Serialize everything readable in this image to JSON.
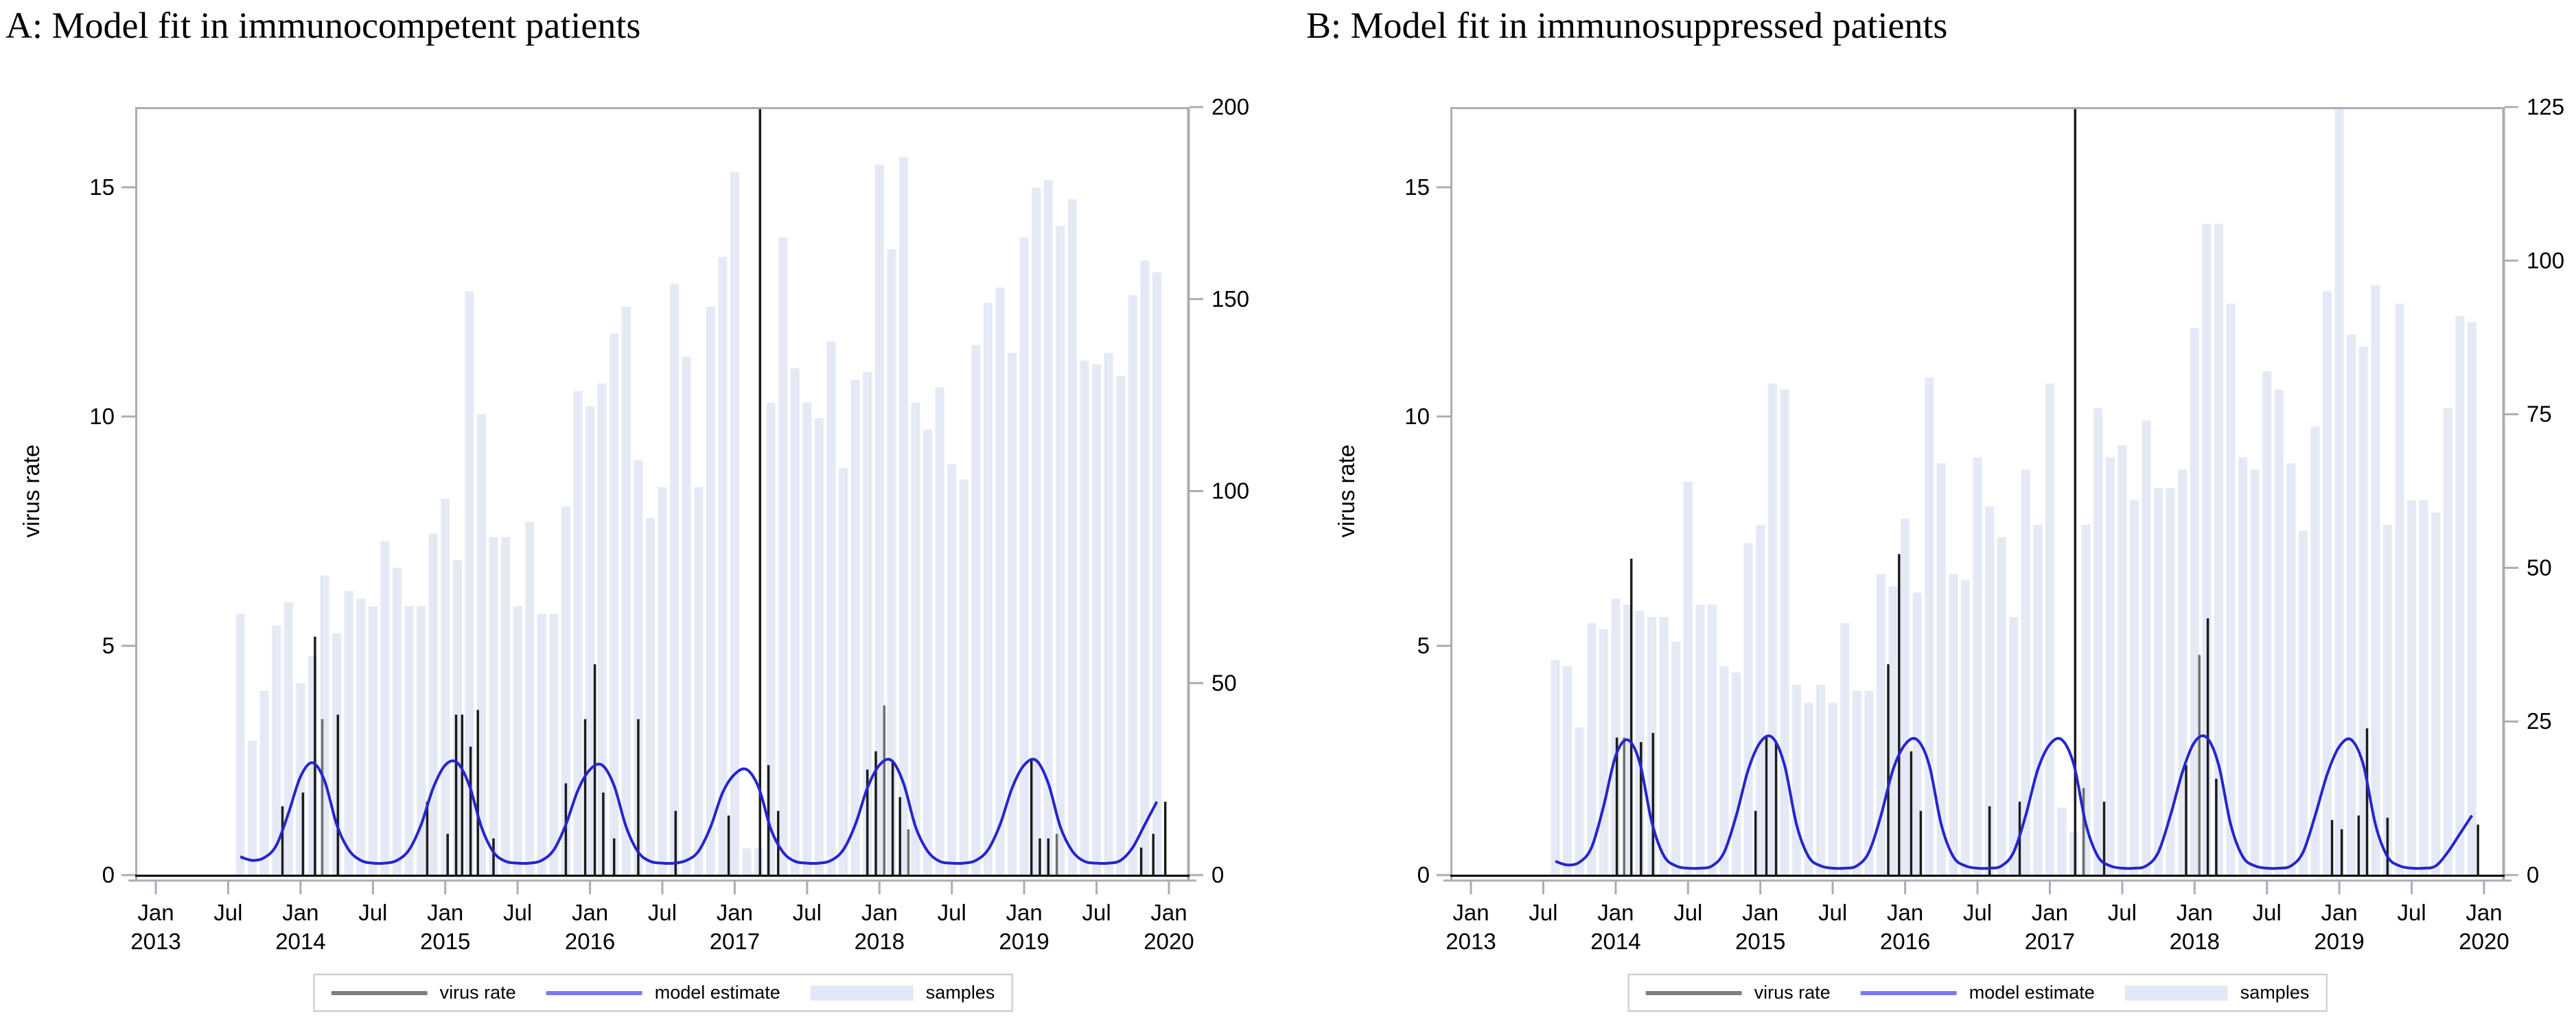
{
  "titles": {
    "panel_a": "A: Model fit in immunocompetent patients",
    "panel_b": "B: Model fit in immunosuppressed patients"
  },
  "y_axis_label": "virus rate",
  "legend": {
    "items": [
      {
        "swatch": "line",
        "color": "#7f7f7f",
        "label": "virus rate"
      },
      {
        "swatch": "line",
        "color": "#7a7ae8",
        "label": "model estimate"
      },
      {
        "swatch": "box",
        "color": "#e2e8f5",
        "label": "samples"
      }
    ]
  },
  "colors": {
    "bar": "#e4e9f5",
    "curve": "#2525cd",
    "spike_dark": "#1c1c1c",
    "spike_gray": "#6f6f6f",
    "axis_gray": "#a9aeb4",
    "axis_black": "#000000",
    "text": "#000000",
    "legend_border": "#c9cdd1"
  },
  "chart_data": [
    {
      "panel": "A",
      "type": "bar",
      "title": "A: Model fit in immunocompetent patients",
      "xlabel": "",
      "ylabel_left": "virus rate",
      "ylabel_right": "",
      "x_range": [
        "Jan 2013",
        "Jan 2020"
      ],
      "x_tick_labels": [
        [
          "Jan",
          "2013"
        ],
        [
          "Jul"
        ],
        [
          "Jan",
          "2014"
        ],
        [
          "Jul"
        ],
        [
          "Jan",
          "2015"
        ],
        [
          "Jul"
        ],
        [
          "Jan",
          "2016"
        ],
        [
          "Jul"
        ],
        [
          "Jan",
          "2017"
        ],
        [
          "Jul"
        ],
        [
          "Jan",
          "2018"
        ],
        [
          "Jul"
        ],
        [
          "Jan",
          "2019"
        ],
        [
          "Jul"
        ],
        [
          "Jan",
          "2020"
        ]
      ],
      "y_left_ticks": [
        0,
        5,
        10,
        15
      ],
      "y_left_max": 16.75,
      "y_right_ticks": [
        0,
        50,
        100,
        150,
        200
      ],
      "y_right_max": 200,
      "legend_position": "bottom",
      "grid": false,
      "months": [
        "2013-08",
        "2013-09",
        "2013-10",
        "2013-11",
        "2013-12",
        "2014-01",
        "2014-02",
        "2014-03",
        "2014-04",
        "2014-05",
        "2014-06",
        "2014-07",
        "2014-08",
        "2014-09",
        "2014-10",
        "2014-11",
        "2014-12",
        "2015-01",
        "2015-02",
        "2015-03",
        "2015-04",
        "2015-05",
        "2015-06",
        "2015-07",
        "2015-08",
        "2015-09",
        "2015-10",
        "2015-11",
        "2015-12",
        "2016-01",
        "2016-02",
        "2016-03",
        "2016-04",
        "2016-05",
        "2016-06",
        "2016-07",
        "2016-08",
        "2016-09",
        "2016-10",
        "2016-11",
        "2016-12",
        "2017-01",
        "2017-02",
        "2017-03",
        "2017-04",
        "2017-05",
        "2017-06",
        "2017-07",
        "2017-08",
        "2017-09",
        "2017-10",
        "2017-11",
        "2017-12",
        "2018-01",
        "2018-02",
        "2018-03",
        "2018-04",
        "2018-05",
        "2018-06",
        "2018-07",
        "2018-08",
        "2018-09",
        "2018-10",
        "2018-11",
        "2018-12",
        "2019-01",
        "2019-02",
        "2019-03",
        "2019-04",
        "2019-05",
        "2019-06",
        "2019-07",
        "2019-08",
        "2019-09",
        "2019-10",
        "2019-11",
        "2019-12"
      ],
      "samples": [
        68,
        35,
        48,
        65,
        71,
        50,
        57,
        78,
        63,
        74,
        72,
        70,
        87,
        80,
        70,
        70,
        89,
        98,
        82,
        152,
        120,
        88,
        88,
        70,
        92,
        68,
        68,
        96,
        126,
        122,
        128,
        141,
        148,
        108,
        93,
        101,
        154,
        135,
        101,
        148,
        161,
        183,
        7,
        7,
        123,
        166,
        132,
        123,
        119,
        139,
        106,
        129,
        131,
        185,
        163,
        187,
        123,
        116,
        127,
        107,
        103,
        138,
        149,
        153,
        136,
        166,
        179,
        181,
        169,
        176,
        134,
        133,
        136,
        130,
        151,
        160,
        157
      ],
      "model_estimate": [
        0.4,
        0.32,
        0.38,
        0.65,
        1.35,
        2.15,
        2.45,
        2.05,
        1.1,
        0.55,
        0.32,
        0.26,
        0.26,
        0.32,
        0.55,
        1.1,
        1.9,
        2.4,
        2.45,
        1.95,
        1.05,
        0.5,
        0.3,
        0.26,
        0.26,
        0.32,
        0.55,
        1.1,
        1.85,
        2.3,
        2.4,
        1.95,
        1.05,
        0.5,
        0.3,
        0.26,
        0.26,
        0.32,
        0.52,
        1.05,
        1.8,
        2.2,
        2.3,
        1.9,
        1.0,
        0.5,
        0.3,
        0.26,
        0.26,
        0.32,
        0.55,
        1.1,
        1.9,
        2.4,
        2.5,
        2.0,
        1.05,
        0.52,
        0.3,
        0.26,
        0.26,
        0.32,
        0.55,
        1.1,
        1.9,
        2.4,
        2.5,
        2.0,
        1.05,
        0.52,
        0.3,
        0.26,
        0.26,
        0.32,
        0.6,
        1.1,
        1.6
      ],
      "virus_rate_spikes": [
        [
          3.5,
          1.5,
          "k"
        ],
        [
          5.2,
          1.8,
          "k"
        ],
        [
          6.2,
          5.2,
          "k"
        ],
        [
          6.8,
          3.4,
          "g"
        ],
        [
          8.1,
          3.5,
          "k"
        ],
        [
          15.5,
          1.6,
          "k"
        ],
        [
          17.2,
          0.9,
          "k"
        ],
        [
          17.9,
          3.5,
          "k"
        ],
        [
          18.4,
          3.5,
          "k"
        ],
        [
          19.1,
          2.8,
          "k"
        ],
        [
          19.7,
          3.6,
          "k"
        ],
        [
          21.0,
          0.8,
          "k"
        ],
        [
          27.0,
          2.0,
          "k"
        ],
        [
          28.6,
          3.4,
          "k"
        ],
        [
          29.4,
          4.6,
          "k"
        ],
        [
          30.1,
          1.8,
          "k"
        ],
        [
          31.0,
          0.8,
          "k"
        ],
        [
          33.0,
          3.4,
          "k"
        ],
        [
          36.1,
          1.4,
          "k"
        ],
        [
          40.5,
          1.3,
          "k"
        ],
        [
          43.1,
          17,
          "k"
        ],
        [
          43.8,
          2.4,
          "k"
        ],
        [
          44.6,
          1.4,
          "k"
        ],
        [
          52.0,
          2.3,
          "k"
        ],
        [
          52.7,
          2.7,
          "k"
        ],
        [
          53.4,
          3.7,
          "g"
        ],
        [
          54.1,
          2.5,
          "k"
        ],
        [
          54.7,
          1.7,
          "k"
        ],
        [
          55.4,
          1.0,
          "g"
        ],
        [
          65.6,
          2.5,
          "k"
        ],
        [
          66.3,
          0.8,
          "k"
        ],
        [
          67.0,
          0.8,
          "k"
        ],
        [
          67.7,
          0.9,
          "g"
        ],
        [
          74.7,
          0.6,
          "k"
        ],
        [
          75.7,
          0.9,
          "k"
        ],
        [
          76.7,
          1.6,
          "k"
        ]
      ]
    },
    {
      "panel": "B",
      "type": "bar",
      "title": "B: Model fit in immunosuppressed patients",
      "xlabel": "",
      "ylabel_left": "virus rate",
      "ylabel_right": "",
      "x_range": [
        "Jan 2013",
        "Jan 2020"
      ],
      "x_tick_labels": [
        [
          "Jan",
          "2013"
        ],
        [
          "Jul"
        ],
        [
          "Jan",
          "2014"
        ],
        [
          "Jul"
        ],
        [
          "Jan",
          "2015"
        ],
        [
          "Jul"
        ],
        [
          "Jan",
          "2016"
        ],
        [
          "Jul"
        ],
        [
          "Jan",
          "2017"
        ],
        [
          "Jul"
        ],
        [
          "Jan",
          "2018"
        ],
        [
          "Jul"
        ],
        [
          "Jan",
          "2019"
        ],
        [
          "Jul"
        ],
        [
          "Jan",
          "2020"
        ]
      ],
      "y_left_ticks": [
        0,
        5,
        10,
        15
      ],
      "y_left_max": 16.75,
      "y_right_ticks": [
        0,
        25,
        50,
        75,
        100,
        125
      ],
      "y_right_max": 125,
      "legend_position": "bottom",
      "grid": false,
      "months": [
        "2013-08",
        "2013-09",
        "2013-10",
        "2013-11",
        "2013-12",
        "2014-01",
        "2014-02",
        "2014-03",
        "2014-04",
        "2014-05",
        "2014-06",
        "2014-07",
        "2014-08",
        "2014-09",
        "2014-10",
        "2014-11",
        "2014-12",
        "2015-01",
        "2015-02",
        "2015-03",
        "2015-04",
        "2015-05",
        "2015-06",
        "2015-07",
        "2015-08",
        "2015-09",
        "2015-10",
        "2015-11",
        "2015-12",
        "2016-01",
        "2016-02",
        "2016-03",
        "2016-04",
        "2016-05",
        "2016-06",
        "2016-07",
        "2016-08",
        "2016-09",
        "2016-10",
        "2016-11",
        "2016-12",
        "2017-01",
        "2017-02",
        "2017-03",
        "2017-04",
        "2017-05",
        "2017-06",
        "2017-07",
        "2017-08",
        "2017-09",
        "2017-10",
        "2017-11",
        "2017-12",
        "2018-01",
        "2018-02",
        "2018-03",
        "2018-04",
        "2018-05",
        "2018-06",
        "2018-07",
        "2018-08",
        "2018-09",
        "2018-10",
        "2018-11",
        "2018-12",
        "2019-01",
        "2019-02",
        "2019-03",
        "2019-04",
        "2019-05",
        "2019-06",
        "2019-07",
        "2019-08",
        "2019-09",
        "2019-10",
        "2019-11",
        "2019-12"
      ],
      "samples": [
        35,
        34,
        24,
        41,
        40,
        45,
        44,
        43,
        42,
        42,
        38,
        64,
        44,
        44,
        34,
        33,
        54,
        57,
        80,
        79,
        31,
        28,
        31,
        28,
        41,
        30,
        30,
        49,
        47,
        58,
        46,
        81,
        67,
        49,
        48,
        68,
        60,
        55,
        42,
        66,
        57,
        80,
        11,
        7,
        57,
        76,
        68,
        70,
        61,
        74,
        63,
        63,
        66,
        89,
        106,
        106,
        93,
        68,
        66,
        82,
        79,
        67,
        56,
        73,
        95,
        125,
        88,
        86,
        96,
        57,
        93,
        61,
        61,
        59,
        76,
        91,
        90
      ],
      "model_estimate": [
        0.3,
        0.22,
        0.28,
        0.6,
        1.5,
        2.6,
        2.95,
        2.45,
        1.15,
        0.42,
        0.2,
        0.15,
        0.15,
        0.2,
        0.5,
        1.3,
        2.3,
        2.9,
        3.0,
        2.4,
        1.1,
        0.4,
        0.2,
        0.15,
        0.15,
        0.2,
        0.5,
        1.3,
        2.3,
        2.85,
        2.95,
        2.4,
        1.1,
        0.4,
        0.2,
        0.15,
        0.15,
        0.2,
        0.5,
        1.3,
        2.3,
        2.85,
        2.95,
        2.4,
        1.1,
        0.4,
        0.2,
        0.15,
        0.15,
        0.2,
        0.5,
        1.3,
        2.25,
        2.9,
        3.0,
        2.4,
        1.1,
        0.4,
        0.2,
        0.15,
        0.15,
        0.2,
        0.5,
        1.3,
        2.2,
        2.8,
        2.95,
        2.4,
        1.1,
        0.4,
        0.2,
        0.15,
        0.15,
        0.2,
        0.5,
        0.9,
        1.3
      ],
      "virus_rate_spikes": [
        [
          5.1,
          3.0,
          "k"
        ],
        [
          5.7,
          3.0,
          "g"
        ],
        [
          6.3,
          6.9,
          "k"
        ],
        [
          7.1,
          2.9,
          "k"
        ],
        [
          8.1,
          3.1,
          "k"
        ],
        [
          16.6,
          1.4,
          "k"
        ],
        [
          17.5,
          3.0,
          "k"
        ],
        [
          18.3,
          2.9,
          "k"
        ],
        [
          27.6,
          4.6,
          "k"
        ],
        [
          28.5,
          7.0,
          "k"
        ],
        [
          29.5,
          2.7,
          "k"
        ],
        [
          30.3,
          1.4,
          "k"
        ],
        [
          36.0,
          1.5,
          "k"
        ],
        [
          38.5,
          1.6,
          "k"
        ],
        [
          43.1,
          17,
          "k"
        ],
        [
          43.8,
          1.9,
          "g"
        ],
        [
          45.5,
          1.6,
          "k"
        ],
        [
          52.3,
          2.4,
          "k"
        ],
        [
          53.4,
          4.8,
          "g"
        ],
        [
          54.1,
          5.6,
          "k"
        ],
        [
          54.8,
          2.1,
          "k"
        ],
        [
          64.4,
          1.2,
          "k"
        ],
        [
          65.2,
          1.0,
          "k"
        ],
        [
          66.6,
          1.3,
          "k"
        ],
        [
          67.3,
          3.2,
          "k"
        ],
        [
          69.0,
          1.25,
          "k"
        ],
        [
          76.5,
          1.1,
          "k"
        ]
      ]
    }
  ]
}
